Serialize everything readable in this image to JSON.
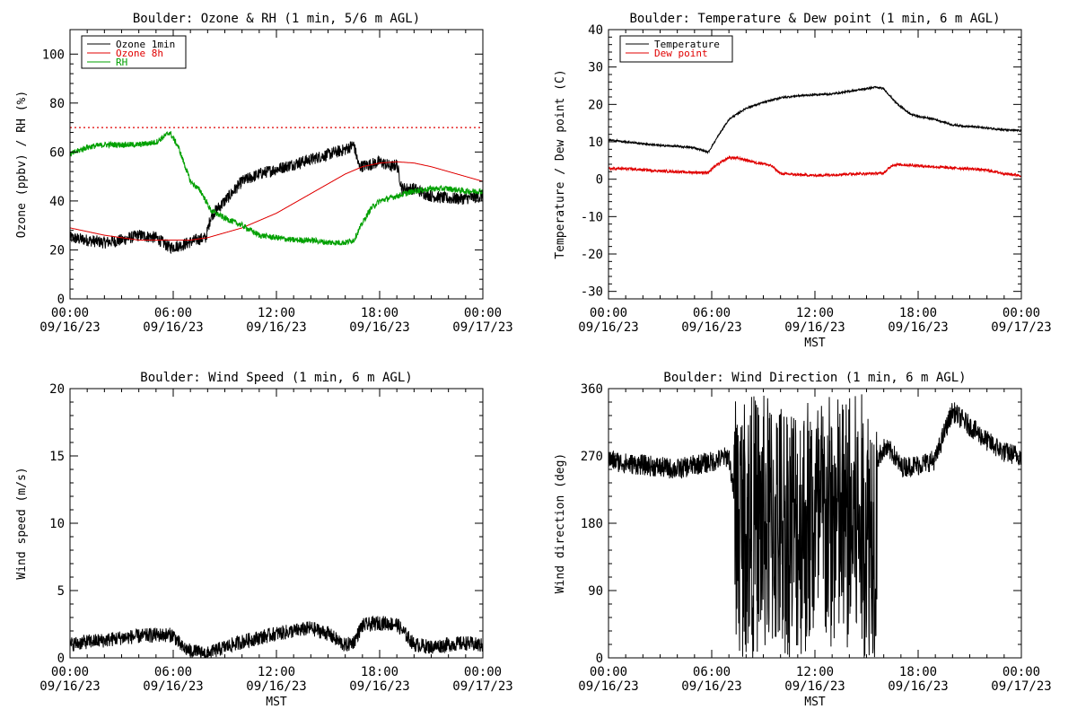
{
  "chart_data": [
    {
      "id": "ozone_rh",
      "type": "line",
      "title": "Boulder: Ozone & RH (1 min, 5/6 m AGL)",
      "ylabel": "Ozone (ppbv) / RH (%)",
      "xlabel": "",
      "xlim": [
        0,
        24
      ],
      "ylim": [
        0,
        110
      ],
      "yticks": [
        0,
        20,
        40,
        60,
        80,
        100
      ],
      "xticks": [
        {
          "h": 0,
          "time": "00:00",
          "date": "09/16/23"
        },
        {
          "h": 6,
          "time": "06:00",
          "date": "09/16/23"
        },
        {
          "h": 12,
          "time": "12:00",
          "date": "09/16/23"
        },
        {
          "h": 18,
          "time": "18:00",
          "date": "09/16/23"
        },
        {
          "h": 24,
          "time": "00:00",
          "date": "09/17/23"
        }
      ],
      "legend_position": "top-left",
      "reference_line": {
        "y": 70,
        "color": "#e00000",
        "style": "dotted"
      },
      "series": [
        {
          "name": "Ozone 1min",
          "color": "#000000",
          "noise": 2.5,
          "x": [
            0,
            1,
            2,
            3,
            4,
            5,
            5.8,
            6.5,
            7.3,
            7.9,
            8.2,
            9,
            10,
            11,
            12,
            13,
            14,
            15,
            16,
            16.5,
            16.8,
            17.5,
            18,
            18.7,
            19,
            19.3,
            20,
            21,
            22,
            23,
            24
          ],
          "y": [
            25,
            24,
            23,
            24,
            26,
            25,
            21,
            22,
            24,
            25,
            34,
            40,
            48,
            51,
            53,
            55,
            57,
            59,
            61,
            63,
            54,
            55,
            56,
            54,
            55,
            45,
            45,
            42,
            41,
            41,
            42
          ]
        },
        {
          "name": "Ozone 8h",
          "color": "#e00000",
          "noise": 0,
          "x": [
            0,
            2,
            4,
            6,
            7,
            8,
            9,
            10,
            11,
            12,
            13,
            14,
            15,
            16,
            17,
            18,
            19,
            20,
            21,
            22,
            23,
            24
          ],
          "y": [
            29,
            26,
            24,
            24,
            24,
            25,
            27,
            29,
            32,
            35,
            39,
            43,
            47,
            51,
            54,
            55.5,
            56,
            55.5,
            54,
            52,
            50,
            48
          ]
        },
        {
          "name": "RH",
          "color": "#00a000",
          "noise": 1.2,
          "x": [
            0,
            1,
            2,
            3,
            4,
            5,
            5.8,
            6.3,
            7,
            7.6,
            8.2,
            9,
            10,
            11,
            12,
            13,
            14,
            15,
            16,
            16.5,
            17,
            17.5,
            18,
            19,
            20,
            21,
            22,
            23,
            24
          ],
          "y": [
            59,
            62,
            63,
            63,
            63,
            64,
            68,
            62,
            48,
            44,
            36,
            33,
            30,
            26,
            25,
            24,
            24,
            23,
            23,
            24,
            31,
            37,
            40,
            42,
            44,
            45,
            45,
            44,
            44
          ]
        }
      ]
    },
    {
      "id": "temp_dew",
      "type": "line",
      "title": "Boulder: Temperature & Dew point (1 min, 6 m AGL)",
      "ylabel": "Temperature / Dew point (C)",
      "xlabel": "MST",
      "xlim": [
        0,
        24
      ],
      "ylim": [
        -32,
        40
      ],
      "yticks": [
        -30,
        -20,
        -10,
        0,
        10,
        20,
        30,
        40
      ],
      "xticks": [
        {
          "h": 0,
          "time": "00:00",
          "date": "09/16/23"
        },
        {
          "h": 6,
          "time": "06:00",
          "date": "09/16/23"
        },
        {
          "h": 12,
          "time": "12:00",
          "date": "09/16/23"
        },
        {
          "h": 18,
          "time": "18:00",
          "date": "09/16/23"
        },
        {
          "h": 24,
          "time": "00:00",
          "date": "09/17/23"
        }
      ],
      "legend_position": "top-left",
      "series": [
        {
          "name": "Temperature",
          "color": "#000000",
          "noise": 0.25,
          "x": [
            0,
            1,
            2,
            3,
            4,
            5,
            5.8,
            6.3,
            7,
            8,
            9,
            10,
            11,
            12,
            13,
            14,
            15,
            15.5,
            16,
            16.7,
            17.5,
            18,
            19,
            20,
            21,
            22,
            23,
            24
          ],
          "y": [
            10.5,
            10,
            9.5,
            9,
            8.8,
            8.4,
            7.2,
            11,
            16,
            19,
            20.5,
            21.8,
            22.3,
            22.6,
            22.8,
            23.5,
            24.2,
            24.6,
            24.2,
            20.5,
            17.5,
            16.8,
            16,
            14.5,
            14.1,
            13.7,
            13.2,
            13
          ]
        },
        {
          "name": "Dew point",
          "color": "#e00000",
          "noise": 0.35,
          "x": [
            0,
            1,
            2,
            3,
            4,
            5,
            5.8,
            6.2,
            7,
            7.7,
            8.5,
            9,
            9.5,
            10,
            11,
            12,
            13,
            14,
            15,
            16,
            16.5,
            17,
            18,
            19,
            20,
            21,
            22,
            23,
            24
          ],
          "y": [
            2.8,
            2.8,
            2.5,
            2.2,
            2,
            1.8,
            1.8,
            3.5,
            5.8,
            5.5,
            4.5,
            4.2,
            3.5,
            1.5,
            1.2,
            1,
            1.2,
            1.4,
            1.5,
            1.6,
            3.8,
            3.9,
            3.6,
            3.3,
            3,
            2.8,
            2.4,
            1.5,
            1
          ]
        }
      ]
    },
    {
      "id": "wind_speed",
      "type": "line",
      "title": "Boulder: Wind Speed (1 min, 6 m AGL)",
      "ylabel": "Wind speed (m/s)",
      "xlabel": "MST",
      "xlim": [
        0,
        24
      ],
      "ylim": [
        0,
        20
      ],
      "yticks": [
        0,
        5,
        10,
        15,
        20
      ],
      "xticks": [
        {
          "h": 0,
          "time": "00:00",
          "date": "09/16/23"
        },
        {
          "h": 6,
          "time": "06:00",
          "date": "09/16/23"
        },
        {
          "h": 12,
          "time": "12:00",
          "date": "09/16/23"
        },
        {
          "h": 18,
          "time": "18:00",
          "date": "09/16/23"
        },
        {
          "h": 24,
          "time": "00:00",
          "date": "09/17/23"
        }
      ],
      "series": [
        {
          "name": "",
          "color": "#000000",
          "noise": 0.55,
          "x": [
            0,
            1,
            2,
            3,
            4,
            5,
            6,
            6.5,
            7,
            8,
            9,
            10,
            11,
            12,
            13,
            14,
            15,
            16,
            16.5,
            17,
            18,
            19,
            20,
            21,
            22,
            23,
            24
          ],
          "y": [
            1,
            1.2,
            1.3,
            1.5,
            1.6,
            1.7,
            1.7,
            0.8,
            0.5,
            0.3,
            0.8,
            1.2,
            1.5,
            1.8,
            2,
            2.2,
            1.8,
            0.9,
            1.2,
            2.4,
            2.6,
            2.5,
            1,
            0.8,
            1,
            1.1,
            0.9
          ]
        }
      ]
    },
    {
      "id": "wind_dir",
      "type": "line",
      "title": "Boulder: Wind Direction (1 min, 6 m AGL)",
      "ylabel": "Wind direction (deg)",
      "xlabel": "MST",
      "xlim": [
        0,
        24
      ],
      "ylim": [
        0,
        360
      ],
      "yticks": [
        0,
        90,
        180,
        270,
        360
      ],
      "xticks": [
        {
          "h": 0,
          "time": "00:00",
          "date": "09/16/23"
        },
        {
          "h": 6,
          "time": "06:00",
          "date": "09/16/23"
        },
        {
          "h": 12,
          "time": "12:00",
          "date": "09/16/23"
        },
        {
          "h": 18,
          "time": "18:00",
          "date": "09/16/23"
        },
        {
          "h": 24,
          "time": "00:00",
          "date": "09/17/23"
        }
      ],
      "series": [
        {
          "name": "",
          "color": "#000000",
          "noise": 14,
          "x": [
            0,
            1,
            2,
            3,
            4,
            5,
            6,
            7,
            7.5,
            8,
            9,
            10,
            11,
            12,
            13,
            14,
            15,
            15.5,
            16,
            16.5,
            17,
            18,
            19,
            19.5,
            20,
            21,
            22,
            23,
            24
          ],
          "y": [
            265,
            260,
            258,
            255,
            252,
            258,
            262,
            270,
            180,
            140,
            150,
            160,
            170,
            180,
            150,
            160,
            190,
            260,
            280,
            275,
            255,
            258,
            265,
            300,
            330,
            310,
            290,
            275,
            270
          ],
          "chaotic_range": [
            7.3,
            15.6
          ]
        }
      ]
    }
  ]
}
